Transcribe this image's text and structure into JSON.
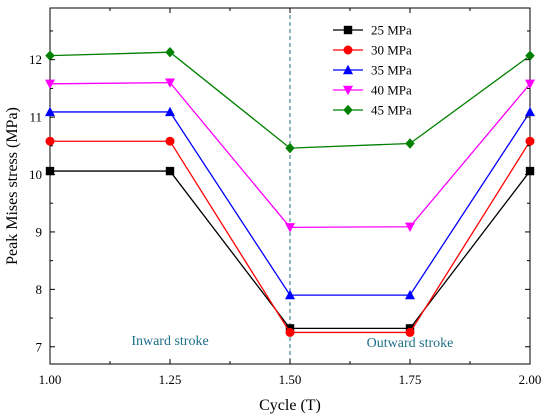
{
  "chart_data": {
    "type": "line",
    "xlabel": "Cycle (T)",
    "ylabel": "Peak Mises stress (MPa)",
    "x": [
      1.0,
      1.25,
      1.5,
      1.75,
      2.0
    ],
    "xlim": [
      1.0,
      2.0
    ],
    "ylim": [
      6.7,
      12.9
    ],
    "x_ticks": [
      "1.00",
      "1.25",
      "1.50",
      "1.75",
      "2.00"
    ],
    "y_ticks": [
      "7",
      "8",
      "9",
      "10",
      "11",
      "12"
    ],
    "grid": false,
    "legend_position": "top-right",
    "series": [
      {
        "name": "25 MPa",
        "color": "#000000",
        "marker": "square",
        "values": [
          10.06,
          10.06,
          7.32,
          7.32,
          10.06
        ]
      },
      {
        "name": "30 MPa",
        "color": "#ff0000",
        "marker": "circle",
        "values": [
          10.58,
          10.58,
          7.25,
          7.25,
          10.58
        ]
      },
      {
        "name": "35 MPa",
        "color": "#0000ff",
        "marker": "triangle-up",
        "values": [
          11.09,
          11.09,
          7.9,
          7.9,
          11.09
        ]
      },
      {
        "name": "40 MPa",
        "color": "#ff00ff",
        "marker": "triangle-down",
        "values": [
          11.58,
          11.6,
          9.08,
          9.09,
          11.58
        ]
      },
      {
        "name": "45 MPa",
        "color": "#008000",
        "marker": "diamond",
        "values": [
          12.07,
          12.13,
          10.46,
          10.54,
          12.07
        ]
      }
    ],
    "annotations": [
      {
        "text": "Inward stroke",
        "color": "#1f6f8b"
      },
      {
        "text": "Outward stroke",
        "color": "#1f6f8b"
      }
    ],
    "reference_line": {
      "x": 1.5,
      "color": "#1f6f8b",
      "style": "dashed"
    }
  }
}
